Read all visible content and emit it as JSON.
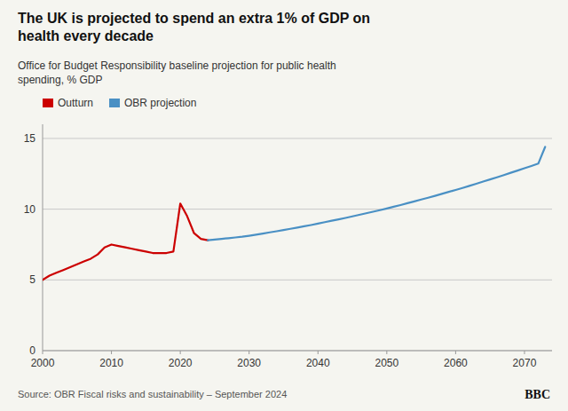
{
  "chart_data": {
    "type": "line",
    "title": "The UK is projected to spend an extra 1% of GDP on\nhealth every decade",
    "subtitle": "Office for Budget Responsibility baseline projection for public health\nspending, % GDP",
    "source": "Source: OBR Fiscal risks and sustainability – September 2024",
    "annotations": [
      "BBC"
    ],
    "xlim": [
      2000,
      2074
    ],
    "xticks": [
      2000,
      2010,
      2020,
      2030,
      2040,
      2050,
      2060,
      2070
    ],
    "ylim": [
      0,
      16
    ],
    "yticks": [
      0,
      5,
      10,
      15
    ],
    "grid": true,
    "legend": "upper left",
    "series": [
      {
        "name": "Outturn",
        "color": "#cc0000",
        "x": [
          2000,
          2001,
          2002,
          2003,
          2004,
          2005,
          2006,
          2007,
          2008,
          2009,
          2010,
          2011,
          2012,
          2013,
          2014,
          2015,
          2016,
          2017,
          2018,
          2019,
          2020,
          2021,
          2022,
          2023,
          2024
        ],
        "values": [
          5.0,
          5.3,
          5.5,
          5.7,
          5.9,
          6.1,
          6.3,
          6.5,
          6.8,
          7.3,
          7.5,
          7.4,
          7.3,
          7.2,
          7.1,
          7.0,
          6.9,
          6.9,
          6.9,
          7.0,
          10.4,
          9.5,
          8.3,
          7.9,
          7.8
        ]
      },
      {
        "name": "OBR projection",
        "color": "#4a90c4",
        "x": [
          2024,
          2025,
          2026,
          2027,
          2028,
          2029,
          2030,
          2031,
          2032,
          2033,
          2034,
          2035,
          2036,
          2037,
          2038,
          2039,
          2040,
          2041,
          2042,
          2043,
          2044,
          2045,
          2046,
          2047,
          2048,
          2049,
          2050,
          2051,
          2052,
          2053,
          2054,
          2055,
          2056,
          2057,
          2058,
          2059,
          2060,
          2061,
          2062,
          2063,
          2064,
          2065,
          2066,
          2067,
          2068,
          2069,
          2070,
          2071,
          2072,
          2073
        ],
        "values": [
          7.8,
          7.85,
          7.9,
          7.95,
          8.0,
          8.05,
          8.12,
          8.2,
          8.28,
          8.36,
          8.44,
          8.52,
          8.61,
          8.7,
          8.79,
          8.88,
          8.98,
          9.08,
          9.18,
          9.28,
          9.38,
          9.49,
          9.6,
          9.71,
          9.82,
          9.93,
          10.05,
          10.17,
          10.29,
          10.42,
          10.55,
          10.68,
          10.81,
          10.94,
          11.08,
          11.22,
          11.36,
          11.5,
          11.65,
          11.8,
          11.95,
          12.1,
          12.25,
          12.41,
          12.57,
          12.73,
          12.89,
          13.05,
          13.22,
          14.4
        ]
      }
    ]
  }
}
